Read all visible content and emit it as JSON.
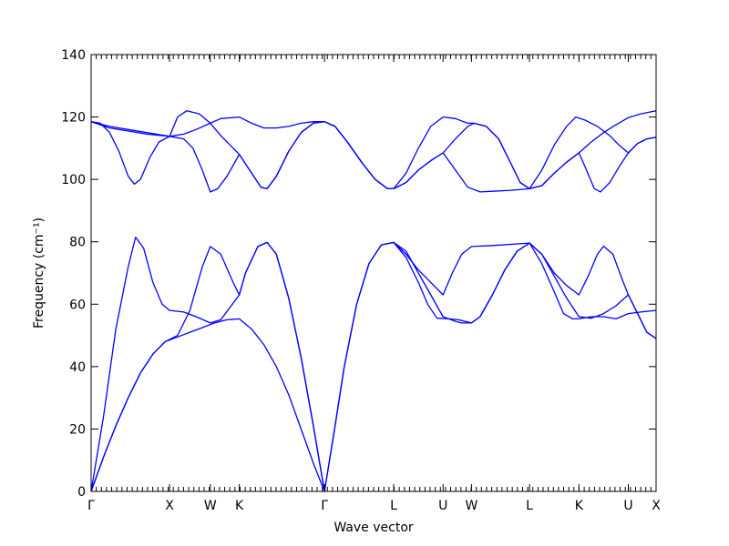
{
  "chart_data": {
    "type": "line",
    "xlabel": "Wave vector",
    "ylabel": "Frequency (cm⁻¹)",
    "ylim": [
      0,
      140
    ],
    "yticks": [
      0,
      20,
      40,
      60,
      80,
      100,
      120,
      140
    ],
    "xlim": [
      0,
      9.15
    ],
    "high_symmetry_points": [
      {
        "label": "Γ",
        "x": 0
      },
      {
        "label": "X",
        "x": 1.27
      },
      {
        "label": "W",
        "x": 1.93
      },
      {
        "label": "K",
        "x": 2.4
      },
      {
        "label": "Γ",
        "x": 3.78
      },
      {
        "label": "L",
        "x": 4.9
      },
      {
        "label": "U",
        "x": 5.7
      },
      {
        "label": "W",
        "x": 6.16
      },
      {
        "label": "L",
        "x": 7.1
      },
      {
        "label": "K",
        "x": 7.9
      },
      {
        "label": "U",
        "x": 8.7
      },
      {
        "label": "X",
        "x": 9.15
      }
    ],
    "series": [
      {
        "points": [
          [
            0,
            0
          ],
          [
            0.2,
            11
          ],
          [
            0.4,
            21
          ],
          [
            0.6,
            30
          ],
          [
            0.8,
            38
          ],
          [
            1.0,
            44
          ],
          [
            1.2,
            48
          ],
          [
            1.4,
            49.5
          ],
          [
            1.6,
            51
          ],
          [
            1.8,
            52.5
          ],
          [
            2.0,
            54
          ],
          [
            2.2,
            55
          ],
          [
            2.4,
            55.3
          ],
          [
            2.6,
            52
          ],
          [
            2.8,
            47
          ],
          [
            3.0,
            40
          ],
          [
            3.2,
            31
          ],
          [
            3.4,
            20
          ],
          [
            3.6,
            9
          ],
          [
            3.78,
            0
          ]
        ]
      },
      {
        "points": [
          [
            0,
            0
          ],
          [
            0.2,
            11
          ],
          [
            0.4,
            21
          ],
          [
            0.6,
            30
          ],
          [
            0.8,
            38
          ],
          [
            1.0,
            44
          ],
          [
            1.2,
            48
          ],
          [
            1.4,
            50
          ],
          [
            1.6,
            58
          ],
          [
            1.8,
            72
          ],
          [
            1.93,
            78.5
          ],
          [
            2.1,
            76
          ],
          [
            2.3,
            67
          ],
          [
            2.4,
            63
          ],
          [
            2.5,
            70
          ],
          [
            2.7,
            78.5
          ],
          [
            2.85,
            79.8
          ],
          [
            3.0,
            76
          ],
          [
            3.2,
            62
          ],
          [
            3.4,
            43
          ],
          [
            3.6,
            21
          ],
          [
            3.78,
            0
          ]
        ]
      },
      {
        "points": [
          [
            0,
            0
          ],
          [
            0.2,
            24
          ],
          [
            0.4,
            52
          ],
          [
            0.6,
            72
          ],
          [
            0.72,
            81.5
          ],
          [
            0.85,
            78
          ],
          [
            1.0,
            67
          ],
          [
            1.15,
            60
          ],
          [
            1.27,
            58
          ],
          [
            1.5,
            57.5
          ],
          [
            1.7,
            56
          ],
          [
            1.93,
            54
          ],
          [
            2.1,
            55
          ],
          [
            2.4,
            63
          ],
          [
            2.5,
            70
          ],
          [
            2.7,
            78.5
          ],
          [
            2.85,
            79.8
          ],
          [
            3.0,
            76
          ],
          [
            3.2,
            62
          ],
          [
            3.4,
            43
          ],
          [
            3.6,
            21
          ],
          [
            3.78,
            0
          ]
        ]
      },
      {
        "points": [
          [
            3.78,
            0
          ],
          [
            3.95,
            21
          ],
          [
            4.1,
            40
          ],
          [
            4.3,
            60
          ],
          [
            4.5,
            73
          ],
          [
            4.7,
            79
          ],
          [
            4.9,
            79.8
          ],
          [
            5.1,
            77
          ],
          [
            5.3,
            70
          ],
          [
            5.5,
            63
          ],
          [
            5.7,
            56
          ],
          [
            5.9,
            54.5
          ],
          [
            6.0,
            54
          ],
          [
            6.16,
            54
          ],
          [
            6.3,
            56
          ],
          [
            6.5,
            63
          ],
          [
            6.7,
            71
          ],
          [
            6.9,
            77
          ],
          [
            7.1,
            79.6
          ],
          [
            7.3,
            76
          ],
          [
            7.5,
            69
          ],
          [
            7.7,
            62
          ],
          [
            7.9,
            56
          ],
          [
            8.1,
            55.5
          ],
          [
            8.3,
            57
          ],
          [
            8.5,
            59.5
          ],
          [
            8.7,
            63
          ],
          [
            8.85,
            57
          ],
          [
            9.0,
            51
          ],
          [
            9.15,
            49
          ]
        ]
      },
      {
        "points": [
          [
            3.78,
            0
          ],
          [
            3.95,
            21
          ],
          [
            4.1,
            40
          ],
          [
            4.3,
            60
          ],
          [
            4.5,
            73
          ],
          [
            4.7,
            79
          ],
          [
            4.9,
            79.8
          ],
          [
            5.1,
            75
          ],
          [
            5.3,
            67
          ],
          [
            5.45,
            60
          ],
          [
            5.6,
            55.5
          ],
          [
            5.8,
            55.3
          ],
          [
            5.95,
            55
          ],
          [
            6.16,
            54
          ],
          [
            6.3,
            56
          ],
          [
            6.5,
            63
          ],
          [
            6.7,
            71
          ],
          [
            6.9,
            77
          ],
          [
            7.1,
            79.6
          ],
          [
            7.3,
            73
          ],
          [
            7.5,
            64
          ],
          [
            7.65,
            57
          ],
          [
            7.8,
            55.3
          ],
          [
            7.9,
            55.3
          ],
          [
            8.1,
            56
          ],
          [
            8.3,
            56
          ],
          [
            8.5,
            55.3
          ],
          [
            8.7,
            57
          ],
          [
            8.9,
            57.5
          ],
          [
            9.15,
            58
          ]
        ]
      },
      {
        "points": [
          [
            4.9,
            79.8
          ],
          [
            5.1,
            76
          ],
          [
            5.3,
            71
          ],
          [
            5.5,
            67
          ],
          [
            5.7,
            63
          ],
          [
            5.85,
            70
          ],
          [
            6.0,
            76
          ],
          [
            6.16,
            78.5
          ],
          [
            6.5,
            78.8
          ],
          [
            6.8,
            79.2
          ],
          [
            7.1,
            79.6
          ],
          [
            7.3,
            76
          ],
          [
            7.5,
            70
          ],
          [
            7.7,
            66
          ],
          [
            7.9,
            63
          ],
          [
            8.05,
            69
          ],
          [
            8.2,
            76
          ],
          [
            8.3,
            78.6
          ],
          [
            8.45,
            76
          ],
          [
            8.6,
            68
          ],
          [
            8.7,
            63
          ],
          [
            8.85,
            57
          ],
          [
            9.0,
            51
          ],
          [
            9.15,
            49
          ]
        ]
      },
      {
        "points": [
          [
            0,
            118.5
          ],
          [
            0.3,
            117
          ],
          [
            0.6,
            116
          ],
          [
            0.9,
            115
          ],
          [
            1.27,
            113.8
          ],
          [
            1.5,
            114.5
          ],
          [
            1.7,
            116
          ],
          [
            1.93,
            118
          ],
          [
            2.1,
            119.5
          ],
          [
            2.4,
            120
          ],
          [
            2.6,
            118
          ],
          [
            2.8,
            116.5
          ],
          [
            3.0,
            116.5
          ],
          [
            3.2,
            117
          ],
          [
            3.4,
            118
          ],
          [
            3.6,
            118.5
          ],
          [
            3.78,
            118.5
          ],
          [
            3.95,
            117
          ],
          [
            4.15,
            112
          ],
          [
            4.4,
            105
          ],
          [
            4.6,
            100
          ],
          [
            4.8,
            97
          ],
          [
            4.9,
            97
          ],
          [
            5.1,
            99
          ],
          [
            5.3,
            103
          ],
          [
            5.5,
            106
          ],
          [
            5.7,
            108.5
          ],
          [
            5.9,
            113
          ],
          [
            6.1,
            117
          ],
          [
            6.2,
            118
          ],
          [
            6.4,
            117
          ],
          [
            6.6,
            113
          ],
          [
            6.8,
            105
          ],
          [
            6.95,
            99
          ],
          [
            7.1,
            97
          ],
          [
            7.3,
            98
          ],
          [
            7.5,
            102
          ],
          [
            7.7,
            105.5
          ],
          [
            7.9,
            108.5
          ],
          [
            8.1,
            112
          ],
          [
            8.3,
            115
          ],
          [
            8.5,
            117.5
          ],
          [
            8.7,
            119.8
          ],
          [
            8.9,
            121
          ],
          [
            9.15,
            122
          ]
        ]
      },
      {
        "points": [
          [
            0,
            118.5
          ],
          [
            0.3,
            116.5
          ],
          [
            0.6,
            115.5
          ],
          [
            0.9,
            114.5
          ],
          [
            1.27,
            113.8
          ],
          [
            1.5,
            113
          ],
          [
            1.65,
            110
          ],
          [
            1.8,
            103
          ],
          [
            1.93,
            96
          ],
          [
            2.05,
            97
          ],
          [
            2.2,
            101
          ],
          [
            2.4,
            108
          ],
          [
            2.6,
            102
          ],
          [
            2.75,
            97.5
          ],
          [
            2.85,
            97
          ],
          [
            3.0,
            101
          ],
          [
            3.2,
            109
          ],
          [
            3.4,
            115
          ],
          [
            3.6,
            118
          ],
          [
            3.78,
            118.5
          ],
          [
            3.95,
            117
          ],
          [
            4.15,
            112
          ],
          [
            4.4,
            105
          ],
          [
            4.6,
            100
          ],
          [
            4.8,
            97
          ],
          [
            4.9,
            97
          ],
          [
            5.1,
            99
          ],
          [
            5.3,
            103
          ],
          [
            5.5,
            106
          ],
          [
            5.7,
            108.5
          ],
          [
            5.9,
            103
          ],
          [
            6.1,
            97.5
          ],
          [
            6.3,
            96
          ],
          [
            6.5,
            96.2
          ],
          [
            6.8,
            96.5
          ],
          [
            7.1,
            97
          ],
          [
            7.3,
            98
          ],
          [
            7.5,
            102
          ],
          [
            7.7,
            105.5
          ],
          [
            7.9,
            108.5
          ],
          [
            8.0,
            104
          ],
          [
            8.15,
            97
          ],
          [
            8.25,
            96
          ],
          [
            8.4,
            99
          ],
          [
            8.55,
            104
          ],
          [
            8.7,
            108.5
          ],
          [
            8.85,
            111.5
          ],
          [
            9.0,
            113
          ],
          [
            9.15,
            113.5
          ]
        ]
      },
      {
        "points": [
          [
            0,
            118.5
          ],
          [
            0.15,
            118
          ],
          [
            0.3,
            115
          ],
          [
            0.45,
            109
          ],
          [
            0.6,
            101
          ],
          [
            0.7,
            98.5
          ],
          [
            0.8,
            100
          ],
          [
            0.95,
            107
          ],
          [
            1.1,
            112
          ],
          [
            1.27,
            113.8
          ],
          [
            1.4,
            120
          ],
          [
            1.55,
            122
          ],
          [
            1.75,
            121
          ],
          [
            1.93,
            118
          ],
          [
            2.1,
            114
          ],
          [
            2.25,
            111
          ],
          [
            2.4,
            108
          ],
          [
            2.6,
            102
          ],
          [
            2.75,
            97.5
          ],
          [
            2.85,
            97
          ],
          [
            3.0,
            101
          ],
          [
            3.2,
            109
          ],
          [
            3.4,
            115
          ],
          [
            3.6,
            118
          ],
          [
            3.78,
            118.5
          ],
          [
            3.95,
            117
          ],
          [
            4.15,
            112
          ],
          [
            4.4,
            105
          ],
          [
            4.6,
            100
          ],
          [
            4.8,
            97
          ],
          [
            4.9,
            97
          ],
          [
            5.1,
            102
          ],
          [
            5.3,
            110
          ],
          [
            5.5,
            117
          ],
          [
            5.7,
            120
          ],
          [
            5.9,
            119.5
          ],
          [
            6.1,
            118
          ],
          [
            6.2,
            118
          ],
          [
            6.4,
            117
          ],
          [
            6.6,
            113
          ],
          [
            6.8,
            105
          ],
          [
            6.95,
            99
          ],
          [
            7.1,
            97
          ],
          [
            7.3,
            103
          ],
          [
            7.5,
            111
          ],
          [
            7.7,
            117
          ],
          [
            7.85,
            120
          ],
          [
            8.0,
            119
          ],
          [
            8.2,
            117
          ],
          [
            8.4,
            114
          ],
          [
            8.55,
            111
          ],
          [
            8.7,
            108.5
          ],
          [
            8.85,
            111.5
          ],
          [
            9.0,
            113
          ],
          [
            9.15,
            113.5
          ]
        ]
      }
    ]
  }
}
